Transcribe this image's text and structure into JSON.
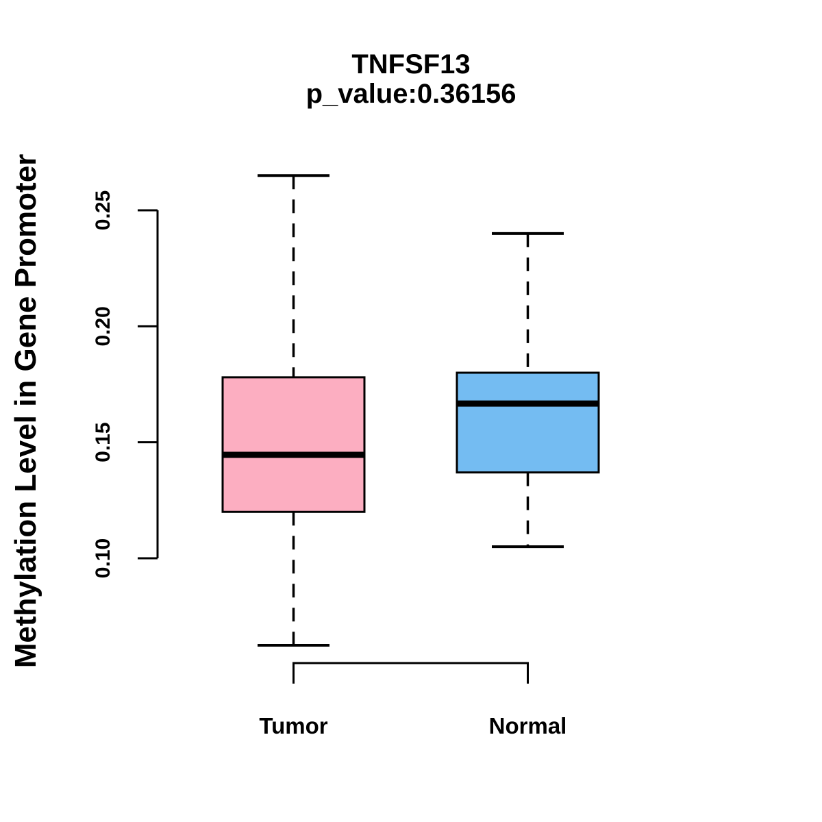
{
  "title": {
    "line1": "TNFSF13",
    "line2": "p_value:0.36156"
  },
  "y_axis": {
    "label": "Methylation Level in Gene Promoter"
  },
  "chart_data": {
    "type": "boxplot",
    "title": "TNFSF13",
    "subtitle": "p_value:0.36156",
    "p_value": 0.36156,
    "ylabel": "Methylation Level in Gene Promoter",
    "xlabel": "",
    "categories": [
      "Tumor",
      "Normal"
    ],
    "yticks": [
      0.25,
      0.2,
      0.15,
      0.1
    ],
    "ytick_labels": [
      "0.25",
      "0.20",
      "0.15",
      "0.10"
    ],
    "ylim": [
      0.1,
      0.25
    ],
    "grid": false,
    "legend": false,
    "whisker_style": "dashed",
    "series": [
      {
        "name": "Tumor",
        "color": "#FCAEC1",
        "whisker_low": 0.0625,
        "q1": 0.12,
        "median": 0.1446,
        "q3": 0.178,
        "whisker_high": 0.265
      },
      {
        "name": "Normal",
        "color": "#74BCF2",
        "whisker_low": 0.105,
        "q1": 0.137,
        "median": 0.1667,
        "q3": 0.18,
        "whisker_high": 0.24
      }
    ]
  },
  "colors": {
    "tumor_fill": "#FCAEC1",
    "normal_fill": "#74BCF2",
    "line": "#000000",
    "background": "#FFFFFF"
  }
}
